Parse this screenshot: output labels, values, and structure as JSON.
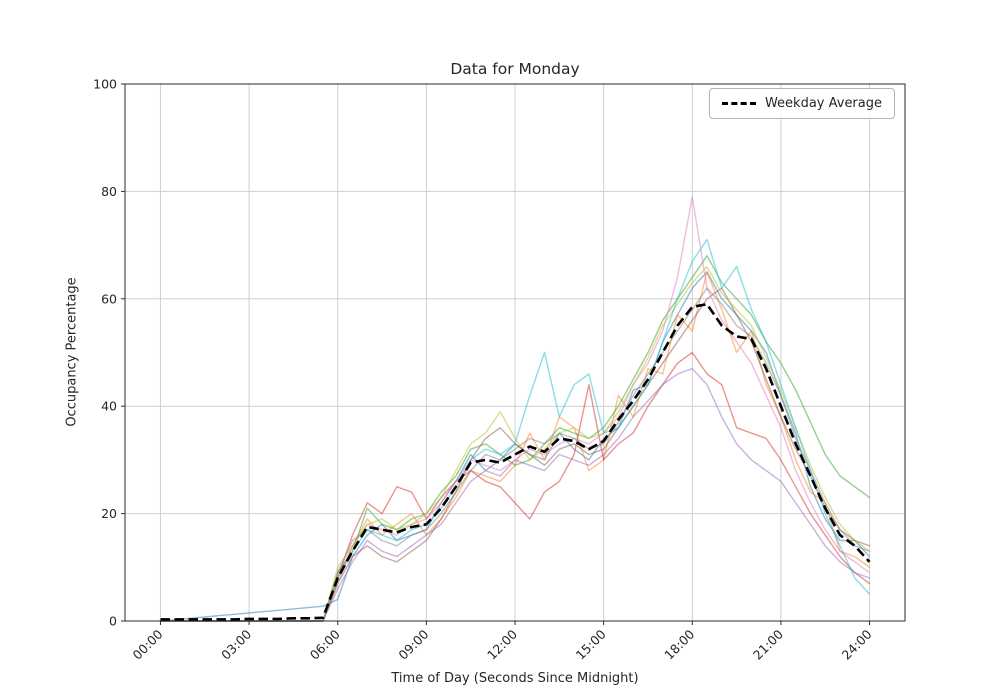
{
  "chart_data": {
    "type": "line",
    "title": "Data for Monday",
    "xlabel": "Time of Day (Seconds Since Midnight)",
    "ylabel": "Occupancy Percentage",
    "grid": true,
    "legend_position": "upper right",
    "xlim": [
      0,
      24
    ],
    "ylim": [
      0,
      100
    ],
    "x_tick_hours": [
      0,
      3,
      6,
      9,
      12,
      15,
      18,
      21,
      24
    ],
    "x_tick_labels": [
      "00:00",
      "03:00",
      "06:00",
      "09:00",
      "12:00",
      "15:00",
      "18:00",
      "21:00",
      "24:00"
    ],
    "y_ticks": [
      0,
      20,
      40,
      60,
      80,
      100
    ],
    "x_hours": [
      0,
      0.5,
      1,
      1.5,
      2,
      2.5,
      3,
      3.5,
      4,
      4.5,
      5,
      5.5,
      6,
      6.5,
      7,
      7.5,
      8,
      8.5,
      9,
      9.5,
      10,
      10.5,
      11,
      11.5,
      12,
      12.5,
      13,
      13.5,
      14,
      14.5,
      15,
      15.5,
      16,
      16.5,
      17,
      17.5,
      18,
      18.5,
      19,
      19.5,
      20,
      20.5,
      21,
      21.5,
      22,
      22.5,
      23,
      23.5,
      24
    ],
    "average_series": {
      "name": "Weekday Average",
      "color": "#000000",
      "dashed": true,
      "values": [
        0.3,
        0.3,
        0.3,
        0.3,
        0.3,
        0.3,
        0.4,
        0.4,
        0.4,
        0.5,
        0.5,
        0.6,
        8,
        13,
        17.5,
        17,
        16.5,
        17.5,
        18,
        21,
        25,
        29.5,
        30,
        29.5,
        31,
        32.5,
        31.5,
        34,
        33.5,
        32,
        33.5,
        37.5,
        41,
        45,
        50,
        55,
        58.5,
        59,
        55,
        53,
        52.5,
        47,
        40,
        33,
        27,
        21,
        16,
        14,
        11
      ]
    },
    "day_series": [
      {
        "color": "#1f77b4",
        "values": [
          0,
          0.25,
          0.5,
          0.75,
          1,
          1.25,
          1.5,
          1.75,
          2,
          2.25,
          2.5,
          2.75,
          4,
          12,
          16,
          18,
          15,
          16,
          17,
          22,
          26,
          31,
          28,
          30,
          33,
          31,
          30,
          35,
          32,
          30,
          34,
          36,
          43,
          44,
          52,
          57,
          62,
          65,
          60,
          57,
          54,
          50,
          42,
          35,
          25,
          19,
          15,
          15,
          12
        ]
      },
      {
        "color": "#ff7f0e",
        "values": [
          0,
          0,
          0,
          0,
          0,
          0,
          0,
          0,
          0,
          0,
          0,
          0,
          7,
          14,
          19,
          16,
          18,
          20,
          16,
          19,
          23,
          28,
          27,
          26,
          29,
          35,
          30,
          38,
          36,
          28,
          30,
          42,
          38,
          47,
          46,
          57,
          54,
          65,
          58,
          50,
          54,
          44,
          38,
          30,
          24,
          22,
          13,
          12,
          10
        ]
      },
      {
        "color": "#2ca02c",
        "values": [
          0,
          0,
          0,
          0,
          0,
          0,
          0,
          0,
          0,
          0,
          0,
          0,
          9,
          13,
          21,
          18,
          17,
          19,
          20,
          24,
          27,
          32,
          33,
          31,
          29,
          30,
          33,
          36,
          35,
          34,
          36,
          40,
          45,
          50,
          56,
          60,
          64,
          68,
          63,
          60,
          57,
          52,
          48,
          43,
          37,
          31,
          27,
          25,
          23
        ]
      },
      {
        "color": "#d62728",
        "values": [
          0,
          0,
          0,
          0,
          0,
          0,
          0,
          0,
          0,
          0,
          0,
          0,
          8,
          16,
          22,
          20,
          25,
          24,
          19,
          23,
          26,
          28,
          26,
          25,
          22,
          19,
          24,
          26,
          31,
          44,
          30,
          33,
          35,
          40,
          44,
          48,
          50,
          46,
          44,
          36,
          35,
          34,
          30,
          25,
          20,
          16,
          12,
          9,
          7
        ]
      },
      {
        "color": "#9467bd",
        "values": [
          0,
          0,
          0,
          0,
          0,
          0,
          0,
          0,
          0,
          0,
          0,
          0,
          6,
          11,
          15,
          13,
          12,
          14,
          16,
          18,
          22,
          26,
          28,
          27,
          30,
          29,
          28,
          31,
          30,
          29,
          31,
          34,
          38,
          41,
          44,
          46,
          47,
          44,
          38,
          33,
          30,
          28,
          26,
          22,
          18,
          14,
          11,
          9,
          8
        ]
      },
      {
        "color": "#8c564b",
        "values": [
          0,
          0,
          0,
          0,
          0,
          0,
          0,
          0,
          0,
          0,
          0,
          0,
          7,
          12,
          14,
          12,
          11,
          13,
          15,
          19,
          24,
          30,
          34,
          36,
          33,
          31,
          29,
          32,
          33,
          31,
          32,
          36,
          40,
          44,
          48,
          52,
          56,
          60,
          62,
          57,
          52,
          45,
          38,
          32,
          27,
          21,
          17,
          15,
          14
        ]
      },
      {
        "color": "#e377c2",
        "values": [
          0,
          0,
          0,
          0,
          0,
          0,
          0,
          0,
          0,
          0,
          0,
          0,
          8,
          14,
          18,
          17,
          16,
          18,
          19,
          22,
          26,
          30,
          29,
          28,
          30,
          32,
          31,
          33,
          34,
          33,
          35,
          38,
          44,
          48,
          54,
          64,
          79,
          62,
          56,
          52,
          48,
          42,
          36,
          28,
          22,
          17,
          13,
          11,
          9
        ]
      },
      {
        "color": "#7f7f7f",
        "values": [
          0,
          0,
          0,
          0,
          0,
          0,
          0,
          0,
          0,
          0,
          0,
          0,
          9,
          15,
          17,
          15,
          14,
          16,
          17,
          20,
          24,
          28,
          31,
          30,
          32,
          34,
          33,
          35,
          34,
          32,
          33,
          37,
          42,
          46,
          50,
          54,
          58,
          62,
          59,
          55,
          53,
          48,
          42,
          34,
          28,
          22,
          17,
          14,
          13
        ]
      },
      {
        "color": "#bcbd22",
        "values": [
          0,
          0,
          0,
          0,
          0,
          0,
          0,
          0,
          0,
          0,
          0,
          0,
          10,
          14,
          18,
          19,
          17,
          18,
          20,
          23,
          28,
          33,
          35,
          39,
          34,
          30,
          32,
          35,
          36,
          34,
          35,
          39,
          44,
          49,
          55,
          59,
          63,
          66,
          61,
          58,
          55,
          49,
          43,
          36,
          29,
          23,
          18,
          15,
          13
        ]
      },
      {
        "color": "#17becf",
        "values": [
          0,
          0,
          0,
          0,
          0,
          0,
          0,
          0,
          0,
          0,
          0,
          0,
          8,
          13,
          17,
          16,
          15,
          17,
          18,
          21,
          25,
          30,
          32,
          31,
          33,
          42,
          50,
          38,
          44,
          46,
          35,
          36,
          40,
          44,
          52,
          60,
          67,
          71,
          62,
          66,
          58,
          52,
          44,
          36,
          28,
          20,
          14,
          8,
          5
        ]
      }
    ]
  }
}
